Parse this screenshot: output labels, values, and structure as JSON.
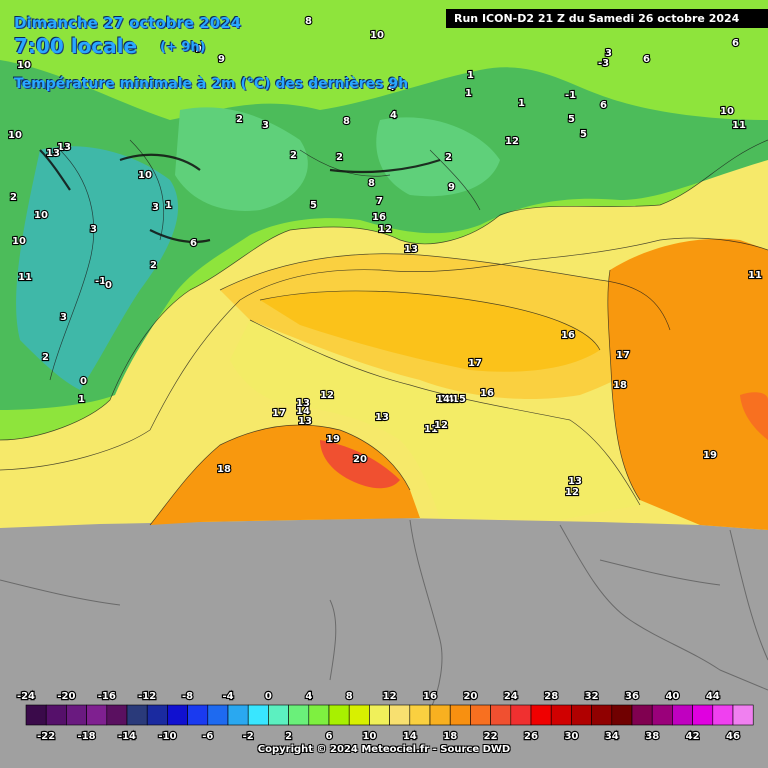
{
  "header": {
    "date": "Dimanche 27 octobre 2024",
    "time": "7:00 locale",
    "lead": "(+ 9h)",
    "variable": "Température minimale à 2m (°C) des dernières 9h",
    "run": "Run ICON-D2 21 Z du Samedi 26 octobre 2024"
  },
  "contour_labels": [
    "8",
    "10",
    "6",
    "9",
    "-3",
    "6",
    "10",
    "10",
    "11",
    "4",
    "4",
    "1",
    "1",
    "1",
    "-1",
    "5",
    "10",
    "13",
    "13",
    "10",
    "2",
    "3",
    "2",
    "2",
    "10",
    "8",
    "8",
    "10",
    "3",
    "6",
    "1",
    "5",
    "2",
    "9",
    "7",
    "16",
    "12",
    "13",
    "11",
    "-1",
    "2",
    "0",
    "11",
    "2",
    "1",
    "2",
    "0",
    "16",
    "17",
    "18",
    "17",
    "16",
    "15",
    "14",
    "14",
    "13",
    "12",
    "13",
    "17",
    "19",
    "20",
    "14",
    "11",
    "12",
    "13",
    "13",
    "12",
    "19",
    "18",
    "9",
    "3",
    "3",
    "6",
    "12",
    "5",
    "3"
  ],
  "legend": {
    "upper_ticks": [
      "-24",
      "-20",
      "-16",
      "-12",
      "-8",
      "-4",
      "0",
      "4",
      "8",
      "12",
      "16",
      "20",
      "24",
      "28",
      "32",
      "36",
      "40",
      "44"
    ],
    "lower_ticks": [
      "-22",
      "-18",
      "-14",
      "-10",
      "-6",
      "-2",
      "2",
      "6",
      "10",
      "14",
      "18",
      "22",
      "26",
      "30",
      "34",
      "38",
      "42",
      "46"
    ],
    "colors": [
      "#3a0a4a",
      "#55106a",
      "#6a1a80",
      "#7f2090",
      "#5a1060",
      "#2a3a7a",
      "#1a2aa0",
      "#1010d0",
      "#1a3af0",
      "#1e6af0",
      "#2aa8f0",
      "#39e6ff",
      "#5cf0c0",
      "#6af07a",
      "#7ef040",
      "#a8f000",
      "#d8f000",
      "#f0f05a",
      "#f8e070",
      "#fad040",
      "#f8b020",
      "#f89010",
      "#f87020",
      "#f05030",
      "#f03030",
      "#f00000",
      "#d00000",
      "#b00000",
      "#900000",
      "#700000",
      "#800050",
      "#9a007a",
      "#c000c0",
      "#e000e0",
      "#f040f0",
      "#f080f0"
    ]
  },
  "copyright": "Copyright © 2024 Meteociel.fr - Source DWD"
}
